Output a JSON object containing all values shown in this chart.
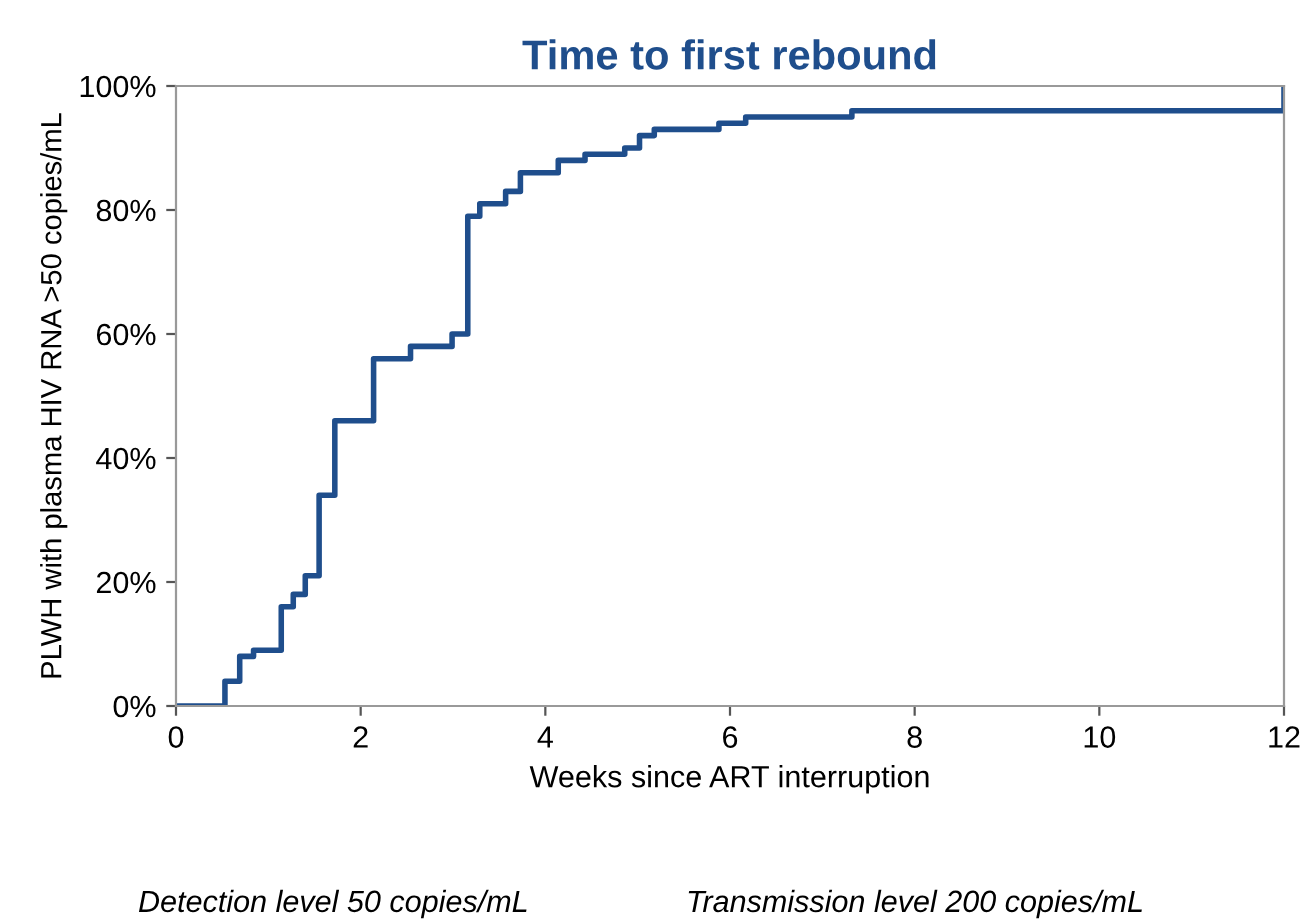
{
  "chart_data": {
    "type": "step",
    "title": "Time to first rebound",
    "xlabel": "Weeks since ART interruption",
    "ylabel": "PLWH with plasma HIV RNA >50 copies/mL",
    "x": [
      0,
      0.53,
      0.69,
      0.84,
      1.14,
      1.27,
      1.4,
      1.55,
      1.72,
      2.14,
      2.54,
      2.99,
      3.16,
      3.29,
      3.57,
      3.73,
      4.14,
      4.43,
      4.86,
      5.02,
      5.18,
      5.88,
      6.17,
      7.32,
      12
    ],
    "series": [
      {
        "color": "#1f4e8c",
        "values": [
          0,
          4,
          8,
          9,
          16,
          18,
          21,
          34,
          46,
          56,
          58,
          60,
          79,
          81,
          83,
          86,
          88,
          89,
          90,
          92,
          93,
          94,
          95,
          96,
          100
        ]
      }
    ],
    "xlim": [
      0,
      12
    ],
    "ylim": [
      0,
      100
    ],
    "xticks": [
      0,
      2,
      4,
      6,
      8,
      10,
      12
    ],
    "yticks": [
      {
        "value": 0,
        "label": "0%"
      },
      {
        "value": 20,
        "label": "20%"
      },
      {
        "value": 40,
        "label": "40%"
      },
      {
        "value": 60,
        "label": "60%"
      },
      {
        "value": 80,
        "label": "80%"
      },
      {
        "value": 100,
        "label": "100%"
      }
    ],
    "grid": false,
    "legend": false,
    "marker": "none",
    "line_style": "solid",
    "annotations": [
      "Detection level 50 copies/mL",
      "Transmission level 200 copies/mL"
    ]
  }
}
